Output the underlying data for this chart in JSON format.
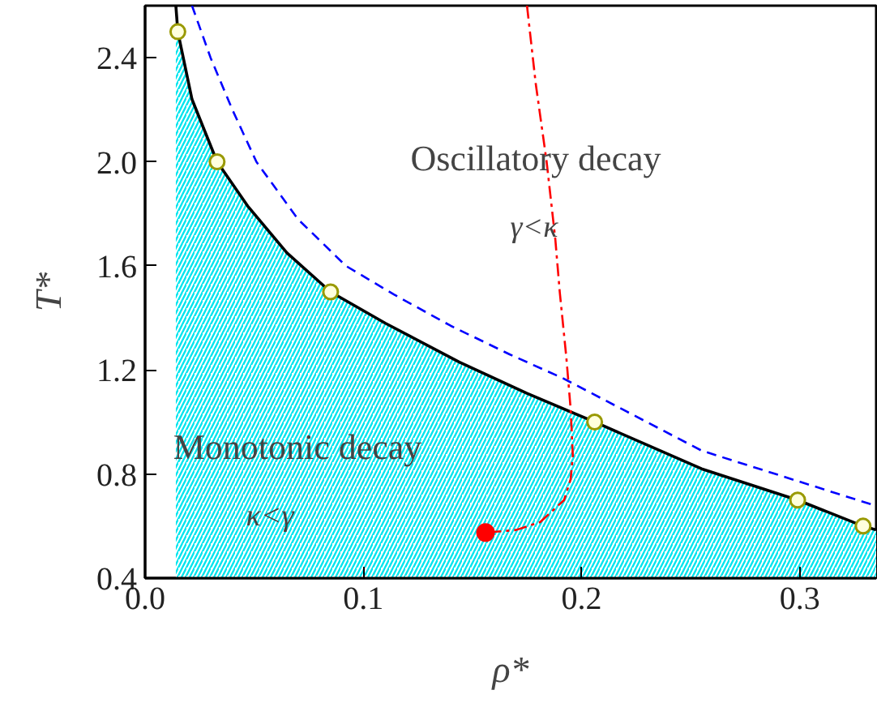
{
  "chart_data": {
    "type": "line",
    "xlabel": "ρ*",
    "ylabel": "T*",
    "xlim": [
      0,
      0.335
    ],
    "ylim": [
      0.4,
      2.6
    ],
    "xticks": [
      {
        "value": 0,
        "label": "0.0"
      },
      0.1,
      0.2,
      0.3
    ],
    "yticks": [
      0.4,
      0.8,
      1.2,
      1.6,
      {
        "value": 2,
        "label": "2.0"
      },
      2.4
    ],
    "grid": false,
    "series": [
      {
        "type": "area",
        "color": "#00e5ee",
        "x": [
          0.0141,
          0.015,
          0.0215,
          0.033,
          0.047,
          0.065,
          0.085,
          0.11,
          0.144,
          0.175,
          0.206,
          0.255,
          0.299,
          0.329,
          0.335
        ],
        "values": [
          2.6,
          2.5,
          2.24,
          2.0,
          1.83,
          1.65,
          1.5,
          1.38,
          1.23,
          1.11,
          1.0,
          0.82,
          0.7,
          0.6,
          0.585
        ]
      },
      {
        "color": "#0000ff",
        "line_style": "dashed",
        "x": [
          0.0215,
          0.03,
          0.04,
          0.051,
          0.07,
          0.092,
          0.114,
          0.14,
          0.167,
          0.191,
          0.255,
          0.334
        ],
        "values": [
          2.6,
          2.4,
          2.2,
          2.0,
          1.78,
          1.6,
          1.49,
          1.37,
          1.26,
          1.17,
          0.89,
          0.68
        ]
      },
      {
        "color": "#ff0000",
        "line_style": "dashdot",
        "x": [
          0.175,
          0.179,
          0.184,
          0.188,
          0.19,
          0.193,
          0.195,
          0.196,
          0.195,
          0.192,
          0.181,
          0.17,
          0.156
        ],
        "values": [
          2.6,
          2.3,
          2.0,
          1.7,
          1.5,
          1.25,
          1.05,
          0.87,
          0.78,
          0.7,
          0.615,
          0.585,
          0.575
        ]
      },
      {
        "type": "scatter",
        "color": "#999900",
        "marker": "circle",
        "x": [
          0.015,
          0.033,
          0.085,
          0.206,
          0.299,
          0.329
        ],
        "values": [
          2.5,
          2.0,
          1.5,
          1.0,
          0.7,
          0.6
        ]
      },
      {
        "type": "scatter",
        "color": "#ff0000",
        "marker": "circle",
        "x": [
          0.156
        ],
        "values": [
          0.575
        ]
      }
    ],
    "annotations": [
      "Oscillatory decay",
      "γ<κ",
      "Monotonic decay",
      "κ<γ"
    ]
  }
}
